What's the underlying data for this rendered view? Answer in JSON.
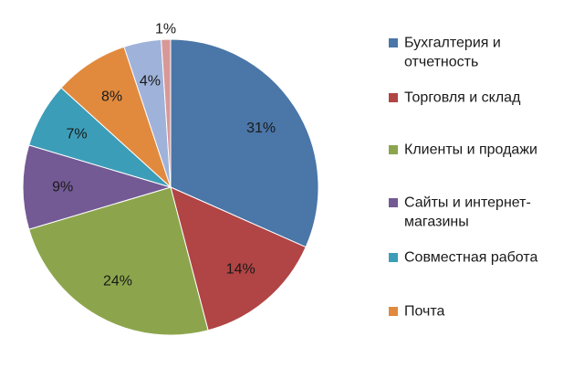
{
  "chart_data": {
    "type": "pie",
    "title": "",
    "legend_position": "right",
    "slices": [
      {
        "label": "Бухгалтерия и отчетность",
        "value": 31,
        "display": "31%",
        "color": "#4a76a8"
      },
      {
        "label": "Торговля и склад",
        "value": 14,
        "display": "14%",
        "color": "#b14444"
      },
      {
        "label": "Клиенты и продажи",
        "value": 24,
        "display": "24%",
        "color": "#8ca54c"
      },
      {
        "label": "Сайты и интернет-магазины",
        "value": 9,
        "display": "9%",
        "color": "#735a94"
      },
      {
        "label": "Совместная работа",
        "value": 7,
        "display": "7%",
        "color": "#3c9db8"
      },
      {
        "label": "Почта",
        "value": 8,
        "display": "8%",
        "color": "#e18a3e"
      },
      {
        "label": "",
        "value": 4,
        "display": "4%",
        "color": "#9fb2d9"
      },
      {
        "label": "",
        "value": 1,
        "display": "1%",
        "color": "#d89898"
      }
    ],
    "legend": [
      {
        "lines": [
          "Бухгалтерия и",
          "отчетность"
        ],
        "color": "#4a76a8"
      },
      {
        "lines": [
          "Торговля и склад"
        ],
        "color": "#b14444"
      },
      {
        "lines": [
          "Клиенты и продажи"
        ],
        "color": "#8ca54c"
      },
      {
        "lines": [
          "Сайты и интернет-",
          "магазины"
        ],
        "color": "#735a94"
      },
      {
        "lines": [
          "Совместная работа"
        ],
        "color": "#3c9db8"
      },
      {
        "lines": [
          "Почта"
        ],
        "color": "#e18a3e"
      }
    ]
  }
}
